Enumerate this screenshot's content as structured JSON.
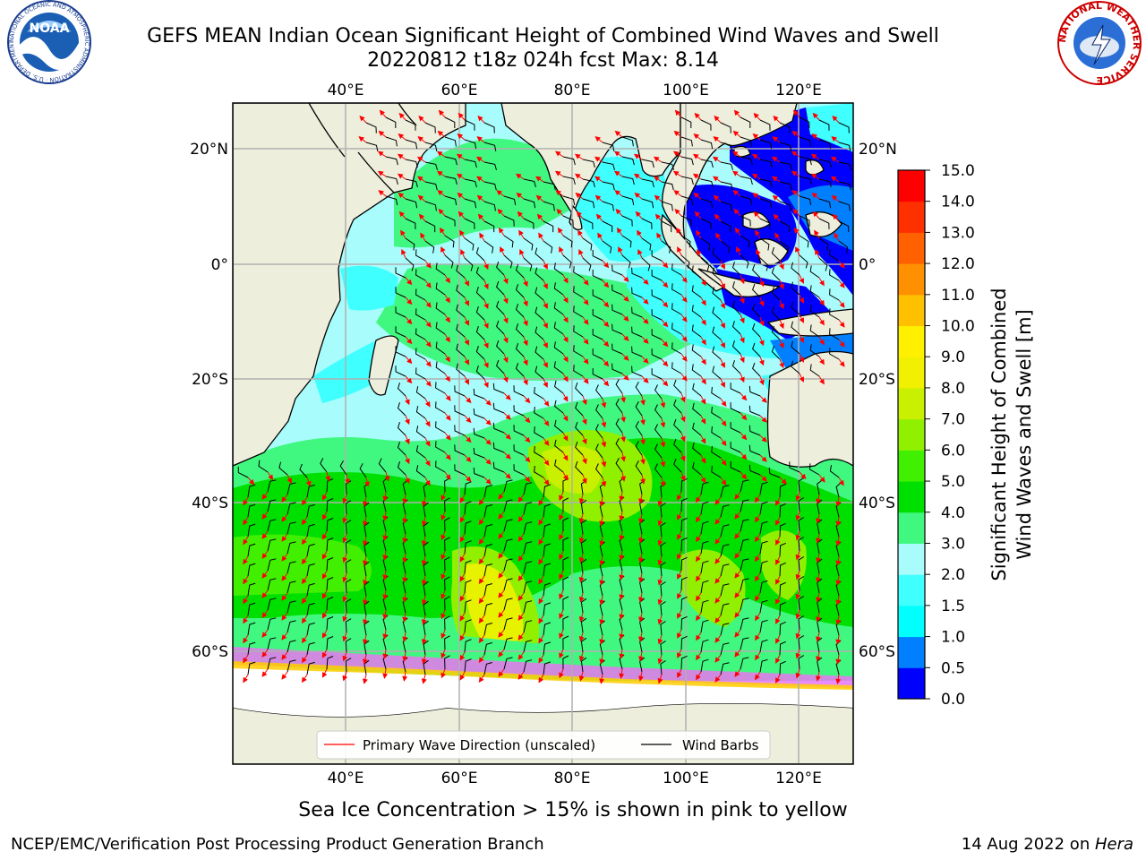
{
  "header": {
    "title_line1": "GEFS MEAN Indian Ocean Significant Height of Combined Wind Waves and Swell",
    "title_line2": "20220812 t18z 024h fcst   Max: 8.14",
    "noaa_logo_text": "NOAA",
    "noaa_ring_text": "NATIONAL OCEANIC AND ATMOSPHERIC ADMINISTRATION · U.S. DEPARTMENT OF COMMERCE",
    "nws_ring_text": "NATIONAL WEATHER SERVICE"
  },
  "map": {
    "lon_labels": [
      "40°E",
      "60°E",
      "80°E",
      "100°E",
      "120°E"
    ],
    "lat_labels": [
      "20°N",
      "0°",
      "20°S",
      "40°S",
      "60°S"
    ],
    "legend": {
      "wave_label": "Primary Wave Direction (unscaled)",
      "barb_label": "Wind Barbs"
    },
    "colors": {
      "ocean_light": "#a8fcfc",
      "land": "#eeeedd",
      "wave_arrow": "#ff0000",
      "barb": "#000000"
    }
  },
  "colorbar": {
    "ticks": [
      "0.0",
      "0.5",
      "1.0",
      "1.5",
      "2.0",
      "3.0",
      "4.0",
      "5.0",
      "6.0",
      "7.0",
      "8.0",
      "9.0",
      "10.0",
      "11.0",
      "12.0",
      "13.0",
      "14.0",
      "15.0"
    ],
    "colors": [
      "#0000ff",
      "#0080ff",
      "#00ffff",
      "#40ffff",
      "#a8fcfc",
      "#40f880",
      "#00e000",
      "#40f000",
      "#90f000",
      "#c8f000",
      "#f0f000",
      "#fff000",
      "#ffc000",
      "#ff9000",
      "#ff6000",
      "#ff3000",
      "#ff0000"
    ],
    "label_line1": "Significant Height of Combined",
    "label_line2": "Wind Waves and Swell [m]"
  },
  "caption": "Sea Ice Concentration > 15% is shown in pink to yellow",
  "footer": {
    "left": "NCEP/EMC/Verification Post Processing Product Generation Branch",
    "date": "14 Aug 2022 on ",
    "host": "Hera"
  }
}
